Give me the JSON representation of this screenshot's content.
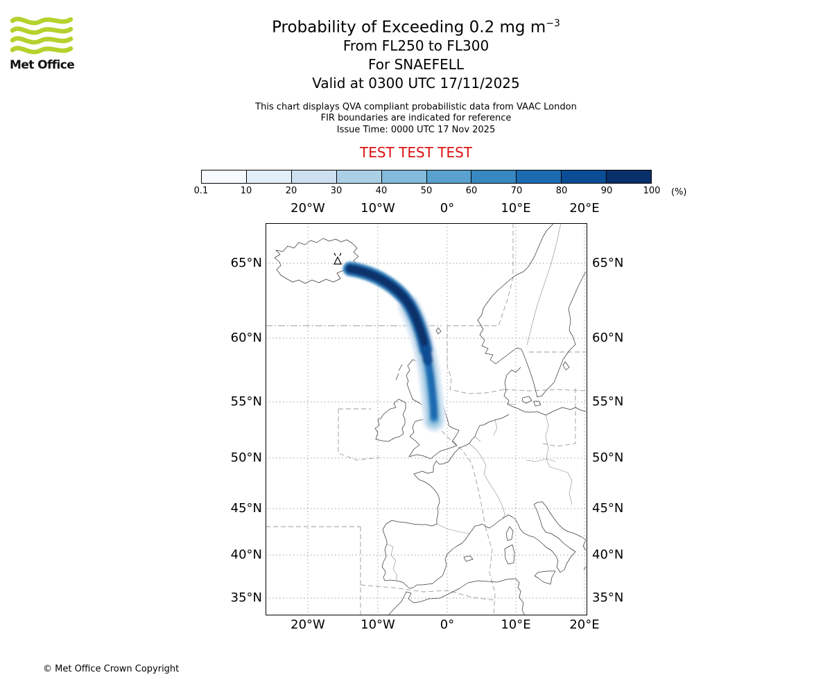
{
  "header": {
    "logo_text": "Met Office",
    "title_main": "Probability of Exceeding 0.2 mg m",
    "title_exponent": "−3",
    "subtitle_fl": "From FL250 to FL300",
    "subtitle_volcano": "For SNAEFELL",
    "subtitle_valid": "Valid at 0300 UTC 17/11/2025",
    "note_line1": "This chart displays QVA compliant probabilistic data from VAAC London",
    "note_line2": "FIR boundaries are indicated for reference",
    "note_line3": "Issue Time: 0000 UTC 17 Nov 2025",
    "test_banner": "TEST TEST TEST"
  },
  "colorbar": {
    "tick_labels": [
      "0.1",
      "10",
      "20",
      "30",
      "40",
      "50",
      "60",
      "70",
      "80",
      "90",
      "100"
    ],
    "unit_label": "(%)",
    "colors": [
      "#f7fbff",
      "#e2eef8",
      "#cde0f1",
      "#abd0e6",
      "#82bbdb",
      "#59a1cf",
      "#3787c0",
      "#1c6bb0",
      "#0b4d94",
      "#08306b"
    ]
  },
  "map": {
    "lon_labels": [
      "20°W",
      "10°W",
      "0°",
      "10°E",
      "20°E"
    ],
    "lat_labels": [
      "65°N",
      "60°N",
      "55°N",
      "50°N",
      "45°N",
      "40°N",
      "35°N"
    ]
  },
  "footer": {
    "copyright": "© Met Office Crown Copyright"
  },
  "colors": {
    "test_text": "#dd1111",
    "logo_green": "#b4d22d",
    "plume_core": "#08306b",
    "grid_gray": "#999999"
  }
}
